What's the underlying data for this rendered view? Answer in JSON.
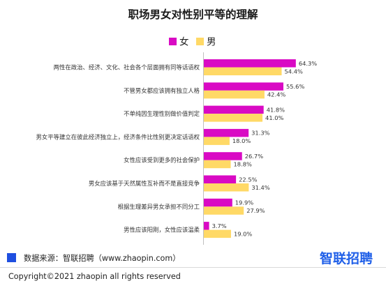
{
  "chart_data": {
    "type": "bar",
    "orientation": "horizontal",
    "title": "职场男女对性别平等的理解",
    "categories": [
      "两性在政治、经济、文化、社会各个层面拥有同等话语权",
      "不管男女都应该拥有独立人格",
      "不单纯因生理性别做价值判定",
      "男女平等建立在彼此经济独立上，经济条件比性别更决定话语权",
      "女性应该受到更多的社会保护",
      "男女应该基于天然属性互补而不是直接竞争",
      "根据生理差异男女承担不同分工",
      "男性应该阳刚，女性应该温柔"
    ],
    "series": [
      {
        "name": "女",
        "color": "#D90AC4",
        "values": [
          64.3,
          55.6,
          41.8,
          31.3,
          26.7,
          22.5,
          19.9,
          3.7
        ],
        "labels": [
          "64.3%",
          "55.6%",
          "41.8%",
          "31.3%",
          "26.7%",
          "22.5%",
          "19.9%",
          "3.7%"
        ]
      },
      {
        "name": "男",
        "color": "#FFD966",
        "values": [
          54.4,
          42.4,
          41.0,
          18.0,
          18.8,
          31.4,
          27.9,
          19.0
        ],
        "labels": [
          "54.4%",
          "42.4%",
          "41.0%",
          "18.0%",
          "18.8%",
          "31.4%",
          "27.9%",
          "19.0%"
        ]
      }
    ],
    "xlim": [
      0,
      100
    ],
    "legend_position": "top-left",
    "grid": false
  },
  "footer": {
    "source": "数据来源：智联招聘（www.zhaopin.com）",
    "source_marker_color": "#1F4FE0",
    "copyright": "Copyright©2021 zhaopin all rights reserved",
    "logo": "智联招聘",
    "logo_color": "#1F5FE8"
  }
}
